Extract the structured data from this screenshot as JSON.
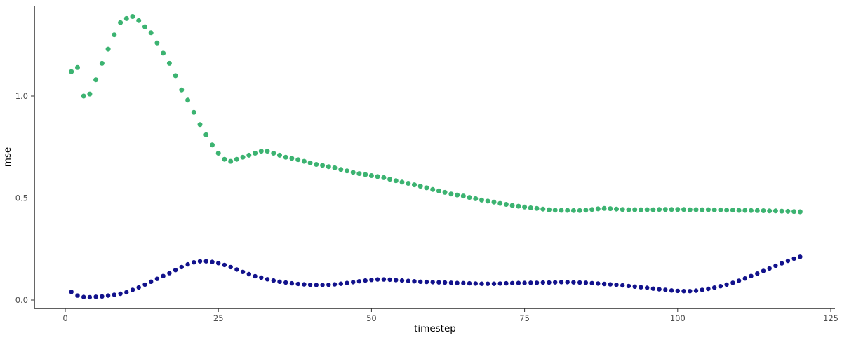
{
  "chart_data": {
    "type": "scatter",
    "title": "",
    "xlabel": "timestep",
    "ylabel": "mse",
    "xlim": [
      0,
      125
    ],
    "ylim": [
      0.0,
      1.44
    ],
    "grid": false,
    "legend": "none",
    "background": "#ffffff",
    "axis_color": "#000000",
    "tick_label_color": "#4d4d4d",
    "x_ticks": [
      {
        "v": 0,
        "label": "0"
      },
      {
        "v": 25,
        "label": "25"
      },
      {
        "v": 50,
        "label": "50"
      },
      {
        "v": 75,
        "label": "75"
      },
      {
        "v": 100,
        "label": "100"
      },
      {
        "v": 125,
        "label": "125"
      }
    ],
    "y_ticks": [
      {
        "v": 0.0,
        "label": "0.0"
      },
      {
        "v": 0.5,
        "label": "0.5"
      },
      {
        "v": 1.0,
        "label": "1.0"
      }
    ],
    "x": [
      1,
      2,
      3,
      4,
      5,
      6,
      7,
      8,
      9,
      10,
      11,
      12,
      13,
      14,
      15,
      16,
      17,
      18,
      19,
      20,
      21,
      22,
      23,
      24,
      25,
      26,
      27,
      28,
      29,
      30,
      31,
      32,
      33,
      34,
      35,
      36,
      37,
      38,
      39,
      40,
      41,
      42,
      43,
      44,
      45,
      46,
      47,
      48,
      49,
      50,
      51,
      52,
      53,
      54,
      55,
      56,
      57,
      58,
      59,
      60,
      61,
      62,
      63,
      64,
      65,
      66,
      67,
      68,
      69,
      70,
      71,
      72,
      73,
      74,
      75,
      76,
      77,
      78,
      79,
      80,
      81,
      82,
      83,
      84,
      85,
      86,
      87,
      88,
      89,
      90,
      91,
      92,
      93,
      94,
      95,
      96,
      97,
      98,
      99,
      100,
      101,
      102,
      103,
      104,
      105,
      106,
      107,
      108,
      109,
      110,
      111,
      112,
      113,
      114,
      115,
      116,
      117,
      118,
      119,
      120
    ],
    "series": [
      {
        "name": "green-series",
        "color": "#3CB371",
        "point_radius": 3.5,
        "values": [
          1.12,
          1.14,
          1.0,
          1.01,
          1.08,
          1.16,
          1.23,
          1.3,
          1.36,
          1.38,
          1.39,
          1.37,
          1.34,
          1.31,
          1.26,
          1.21,
          1.16,
          1.1,
          1.03,
          0.98,
          0.92,
          0.86,
          0.81,
          0.76,
          0.72,
          0.69,
          0.68,
          0.69,
          0.7,
          0.71,
          0.72,
          0.73,
          0.73,
          0.72,
          0.71,
          0.7,
          0.695,
          0.688,
          0.68,
          0.672,
          0.665,
          0.66,
          0.654,
          0.648,
          0.64,
          0.633,
          0.626,
          0.62,
          0.615,
          0.61,
          0.605,
          0.6,
          0.592,
          0.585,
          0.578,
          0.572,
          0.565,
          0.558,
          0.55,
          0.542,
          0.535,
          0.528,
          0.52,
          0.515,
          0.51,
          0.503,
          0.497,
          0.49,
          0.485,
          0.48,
          0.474,
          0.469,
          0.464,
          0.46,
          0.456,
          0.452,
          0.449,
          0.446,
          0.443,
          0.441,
          0.44,
          0.44,
          0.439,
          0.439,
          0.441,
          0.444,
          0.447,
          0.449,
          0.448,
          0.446,
          0.444,
          0.443,
          0.443,
          0.443,
          0.443,
          0.443,
          0.444,
          0.444,
          0.444,
          0.444,
          0.444,
          0.443,
          0.443,
          0.443,
          0.443,
          0.442,
          0.442,
          0.441,
          0.441,
          0.44,
          0.44,
          0.439,
          0.439,
          0.438,
          0.437,
          0.437,
          0.436,
          0.435,
          0.434,
          0.433
        ]
      },
      {
        "name": "navy-series",
        "color": "#12128C",
        "point_radius": 3.2,
        "values": [
          0.04,
          0.022,
          0.015,
          0.014,
          0.016,
          0.018,
          0.022,
          0.026,
          0.031,
          0.038,
          0.05,
          0.062,
          0.076,
          0.09,
          0.104,
          0.118,
          0.132,
          0.147,
          0.162,
          0.175,
          0.185,
          0.19,
          0.19,
          0.187,
          0.181,
          0.172,
          0.162,
          0.15,
          0.138,
          0.127,
          0.117,
          0.11,
          0.102,
          0.096,
          0.09,
          0.086,
          0.082,
          0.079,
          0.077,
          0.075,
          0.074,
          0.074,
          0.075,
          0.077,
          0.08,
          0.084,
          0.088,
          0.092,
          0.096,
          0.099,
          0.101,
          0.101,
          0.1,
          0.098,
          0.096,
          0.094,
          0.092,
          0.09,
          0.089,
          0.088,
          0.087,
          0.086,
          0.085,
          0.084,
          0.083,
          0.082,
          0.081,
          0.08,
          0.08,
          0.08,
          0.081,
          0.082,
          0.083,
          0.084,
          0.084,
          0.085,
          0.085,
          0.086,
          0.086,
          0.087,
          0.088,
          0.088,
          0.087,
          0.086,
          0.085,
          0.083,
          0.081,
          0.079,
          0.077,
          0.075,
          0.072,
          0.069,
          0.066,
          0.063,
          0.06,
          0.056,
          0.053,
          0.05,
          0.047,
          0.045,
          0.044,
          0.044,
          0.046,
          0.05,
          0.055,
          0.061,
          0.068,
          0.076,
          0.085,
          0.095,
          0.106,
          0.118,
          0.13,
          0.143,
          0.155,
          0.168,
          0.18,
          0.192,
          0.203,
          0.212
        ]
      }
    ]
  }
}
